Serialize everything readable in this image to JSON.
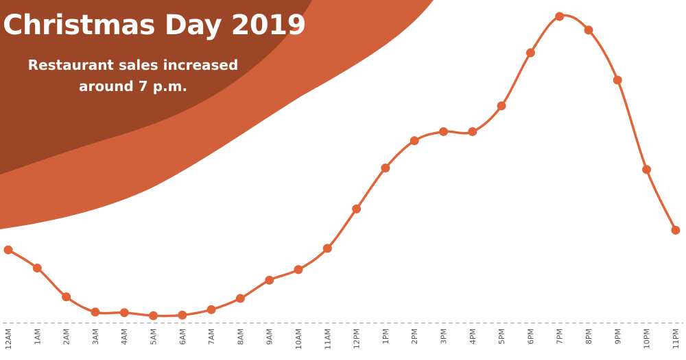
{
  "colors": {
    "background": "#ffffff",
    "wave_light": "#d2603a",
    "wave_dark": "#9c4628",
    "line": "#e0643a",
    "baseline": "#b5b5b5",
    "title_text": "#ffffff",
    "tick_text": "#555555"
  },
  "chart_data": {
    "type": "line",
    "title": "Christmas Day 2019",
    "subtitle": "Restaurant sales increased around 7 p.m.",
    "xlabel": "",
    "ylabel": "",
    "grid": false,
    "legend": "none",
    "ylim": [
      0,
      100
    ],
    "categories": [
      "12AM",
      "1AM",
      "2AM",
      "3AM",
      "4AM",
      "5AM",
      "6AM",
      "7AM",
      "8AM",
      "9AM",
      "10AM",
      "11AM",
      "12PM",
      "1PM",
      "2PM",
      "3PM",
      "4PM",
      "5PM",
      "6PM",
      "7PM",
      "8PM",
      "9PM",
      "10PM",
      "11PM"
    ],
    "values": [
      23,
      17,
      7.5,
      2.5,
      2.3,
      1.3,
      1.5,
      3.3,
      7,
      13,
      16.5,
      23.5,
      36.5,
      50,
      59,
      62,
      62,
      70.5,
      88,
      100,
      95.5,
      79,
      49.5,
      29.5
    ]
  }
}
